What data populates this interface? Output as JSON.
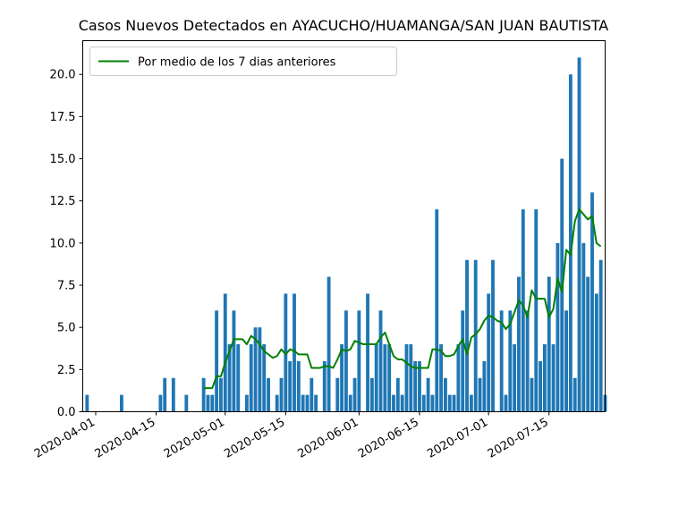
{
  "chart_data": {
    "type": "bar",
    "title": "Casos Nuevos Detectados en AYACUCHO/HUAMANGA/SAN JUAN BAUTISTA",
    "xlabel": "",
    "ylabel": "",
    "start_date": "2020-03-30",
    "end_date": "2020-07-28",
    "xlim": [
      "2020-03-29",
      "2020-07-28"
    ],
    "ylim": [
      0,
      22
    ],
    "x_ticks": [
      "2020-04-01",
      "2020-04-15",
      "2020-05-01",
      "2020-05-15",
      "2020-06-01",
      "2020-06-15",
      "2020-07-01",
      "2020-07-15"
    ],
    "y_ticks": [
      0.0,
      2.5,
      5.0,
      7.5,
      10.0,
      12.5,
      15.0,
      17.5,
      20.0
    ],
    "bar_color": "#1f77b4",
    "line_color": "#008000",
    "grid": false,
    "legend_position": "upper-left",
    "series": [
      {
        "type": "bar",
        "values": [
          1,
          0,
          0,
          0,
          0,
          0,
          0,
          0,
          1,
          0,
          0,
          0,
          0,
          0,
          0,
          0,
          0,
          1,
          2,
          0,
          2,
          0,
          0,
          1,
          0,
          0,
          0,
          2,
          1,
          1,
          6,
          2,
          7,
          4,
          6,
          4,
          0,
          1,
          4,
          5,
          5,
          4,
          2,
          0,
          1,
          2,
          7,
          3,
          7,
          3,
          1,
          1,
          2,
          1,
          0,
          3,
          8,
          0,
          2,
          4,
          6,
          1,
          2,
          6,
          0,
          7,
          2,
          4,
          6,
          4,
          4,
          1,
          2,
          1,
          4,
          4,
          3,
          3,
          1,
          2,
          1,
          12,
          4,
          2,
          1,
          1,
          4,
          6,
          9,
          1,
          9,
          2,
          3,
          7,
          9,
          0,
          6,
          1,
          6,
          4,
          8,
          12,
          6,
          2,
          12,
          3,
          4,
          8,
          4,
          10,
          15,
          6,
          20,
          2,
          21,
          10,
          8,
          13,
          7,
          9,
          1
        ]
      },
      {
        "type": "line",
        "name": "Por medio de los 7 dias anteriores",
        "start_index": 27,
        "values": [
          1.4,
          1.4,
          1.4,
          2.1,
          2.1,
          2.9,
          3.6,
          4.3,
          4.3,
          4.3,
          4.0,
          4.5,
          4.3,
          4.0,
          3.6,
          3.4,
          3.2,
          3.3,
          3.7,
          3.4,
          3.7,
          3.6,
          3.4,
          3.4,
          3.4,
          2.6,
          2.6,
          2.6,
          2.7,
          2.7,
          2.6,
          3.1,
          3.7,
          3.6,
          3.7,
          4.2,
          4.1,
          4.0,
          4.0,
          4.0,
          4.0,
          4.4,
          4.7,
          4.0,
          3.3,
          3.1,
          3.1,
          2.9,
          2.7,
          2.6,
          2.6,
          2.6,
          2.6,
          3.7,
          3.7,
          3.6,
          3.3,
          3.3,
          3.4,
          3.9,
          4.3,
          3.4,
          4.4,
          4.6,
          4.9,
          5.4,
          5.7,
          5.6,
          5.4,
          5.3,
          4.9,
          5.2,
          5.9,
          6.6,
          6.3,
          5.6,
          7.2,
          6.7,
          6.7,
          6.7,
          5.6,
          6.1,
          7.9,
          7.1,
          9.6,
          9.3,
          11.3,
          12.0,
          11.7,
          11.4,
          11.6,
          10.0,
          9.8
        ]
      }
    ]
  }
}
